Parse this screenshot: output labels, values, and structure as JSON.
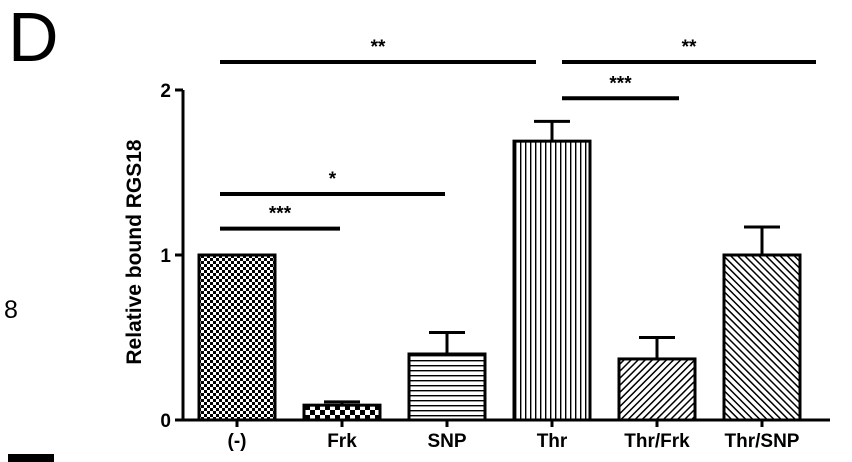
{
  "panel_letter": "D",
  "side_number": "8",
  "chart_data": {
    "type": "bar",
    "categories": [
      "(-)",
      "Frk",
      "SNP",
      "Thr",
      "Thr/Frk",
      "Thr/SNP"
    ],
    "values": [
      1.0,
      0.09,
      0.4,
      1.69,
      0.37,
      1.0
    ],
    "errors": [
      0.0,
      0.02,
      0.13,
      0.12,
      0.13,
      0.17
    ],
    "patterns": [
      "checker",
      "checker-large",
      "horizontal",
      "vertical",
      "diagonal-right",
      "diagonal-left"
    ],
    "ylabel": "Relative bound RGS18",
    "xlabel": "",
    "ylim": [
      0,
      2
    ],
    "yticks": [
      0,
      1,
      2
    ],
    "significance": [
      {
        "from": "(-)",
        "to": "Frk",
        "label": "***",
        "level": 1.16
      },
      {
        "from": "(-)",
        "to": "SNP",
        "label": "*",
        "level": 1.37
      },
      {
        "from": "(-)",
        "to": "Thr",
        "label": "**",
        "level": 2.17
      },
      {
        "from": "Thr",
        "to": "Thr/Frk",
        "label": "***",
        "level": 1.95
      },
      {
        "from": "Thr",
        "to": "Thr/SNP",
        "label": "**",
        "level": 2.17
      }
    ]
  }
}
